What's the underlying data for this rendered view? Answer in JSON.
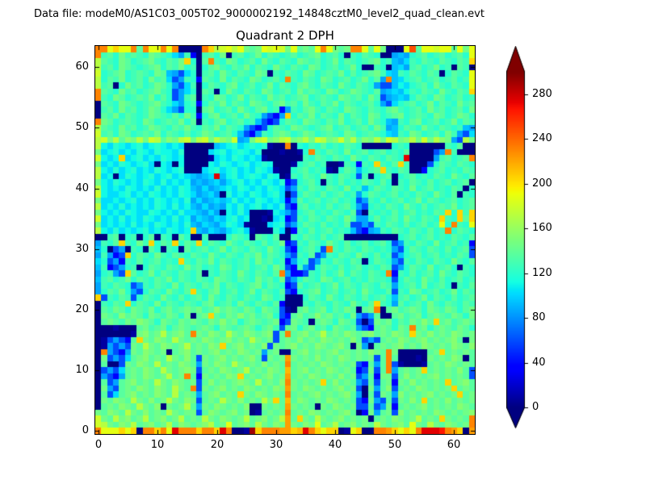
{
  "page": {
    "background": "#ffffff",
    "axes_edge_color": "#000000",
    "text_color": "#000000"
  },
  "header": {
    "data_file_label": "Data file: modeM0/AS1C03_005T02_9000002192_14848cztM0_level2_quad_clean.evt"
  },
  "chart_data": {
    "type": "heatmap",
    "title": "Quadrant 2 DPH",
    "suptitle": "Data file: modeM0/AS1C03_005T02_9000002192_14848cztM0_level2_quad_clean.evt",
    "grid": false,
    "x_range": [
      -0.5,
      63.5
    ],
    "y_range": [
      -0.5,
      63.5
    ],
    "xticks": [
      0,
      10,
      20,
      30,
      40,
      50,
      60
    ],
    "yticks": [
      0,
      10,
      20,
      30,
      40,
      50,
      60
    ],
    "colorbar": {
      "colormap": "jet",
      "vmin": 0,
      "vmax": 300,
      "ticks": [
        0,
        40,
        80,
        120,
        160,
        200,
        240,
        280
      ],
      "extend": "both",
      "position": "right"
    },
    "encoding": "values_rows_top_to_bottom holds 64 strings (row y=63 first, row y=0 last), each 64 chars (x=0..63). Each char c in alphabet maps to counts value = index(c) * 300/35.",
    "alphabet": "0123456789abcdefghijklmnopqrstuvwxyz",
    "value_per_step": 8.5714,
    "values_rows_top_to_bottom": [
      "rrmommrgrmmrmr0000roklmkmhghmlmlhmghgmrmhghrrmgmh000mtgmmlmmgmhm",
      "rfgehfgfehgfecaf40fgeh0fgefhegfefgefghefge0fegfe00abaefgefgefgem",
      "kgfehgefghfegfhoe0grfehgefgehfegfehgfgefhegfefghefbacfegfegfegfo",
      "kfgehgfefghegfhef0eghfegfhegfehfegfehgefgefhe00fe0bcafgefhef0gf0",
      "lefghefgfehgba7ce0fgehfegfehg0fegfehgefgfhegefghfcbfegfegf0egfem",
      "kegfhefgehfgc7afe4gfehegfehgefgerfegfehgefgefhegarbcefgefgefgefm",
      "kfg0ehfgefhgea7cf0egfeghefgefhegfeghfegfehfegfea77bdcefgehfegfem",
      "rgfehfgefghfe7ace0gf0ehfegfehgefgehfgfehgefhgfegabcbdfegfehfegfo",
      "rfehgefgfhege7afg0fehgefhegfehfgefghefgfehgfgehf7abcbegfehgefgef",
      "0gfehgfefghfecaef4egfhegfehgfeghfgehfegfhegfefgea7cefgefhegfehfg",
      "0fgehfgefhgeca7ee0ghefgehfeghef4afeghfegfehgfegfeghfefgehfgefgeh",
      "0gfhegfefhgfegehf4eghefgehfea74aoegfhegfehegfehgefghefgfehgefhge",
      "rhgefgfehgefgfheg0feghefgefb747egfehgfegfhefgehfebafeghefgefhegf",
      "kgfehfgefhgfegfhfegfhegfea747egfehgfefghefgefgehfabegfehfegfefba",
      "lfgehgefgfhegfegefhgefgeb74afeghgefhgefgfehgefgfecbfehgefgehfa7c",
      "klhkgihkhlkgihklhklhkihlabhklhiklhikhlkhilhkgihkhlkhikhlhkiha7kh",
      "kdcedcdecdedcdc00000bcdecdede100r0edfegefegfe00000efe000000feg00",
      "hcdecdcedceddce0000cdecdedce0001001erfegfehefgefgefeg00007arf000",
      "ldcdocdecdcedcd00001cdcedcdc1000000fegfegfehfegfegfew0000afgefgr",
      "hcdcedcdec0dc0d0000dcedcdecded0001efgef001fe4feofegof0007egfegfe",
      "kdcecdecdcedcde000cdecdecdcedc100efgefe10egfbefgofegf004efgefegf",
      "kcd0cedcdecdecdcbabcwbdecdedced01fegfehfegfe7f0efg0efgefegfehfeg",
      "hdcedcdcedcecdcdababcacdecdcedce47efge0fegefegfege0fegfegefgefg0",
      "kdcdcedcdcecdcedbacabcdcedcdcedc7afegfegfehefbegfegfehefgefegf0e",
      "ldccdecdcedcdcedcabca0ecdcedcdec07egfegefgefaegfefgefegfehfeg0fe",
      "hccdcdecdcedcdceacabcbcecdcedcdc4agefgefgefe7afegefgefhegfefgefg",
      "kcdcecdcdcedcecdbacabadcecdecdce74fgefegefgea7efegfehfegefgfhefg",
      "hdcdcedccedcdceccbaca0dcec0001dca7efgefegfeg70fefegefgefegfoeofo",
      "lcdcecdcedcdcecdacbacbdecd0010cd47fegfegfehfaaegefgehfegfeofeogo",
      "hcdcdcecdcedcdcebacbacedc1000cde7aegfegefeg77a7fegfegefgefmerfem",
      "kdcecdcdecdcedcdobacbacdec1000ec04fegefgefeb74abfegfegfegefregfe",
      "00fg0ef0eg0fe0ge00f000egfe0gfeg00fegfegefg000000000efgefgefegfeg",
      "afegofehfoegfoegfoegfehfegfegefh47fegfehfegefgefge7afegfehefgef4",
      "be07a0fe0ge0fe0gefgefhegfegfehfe74efge7rfegfegfefea7egfegfegefg7",
      "afa47oegfehfegfegfehfegfegfhegfea7feg7afegfehfegef7befgefgefegf7",
      "ce7a4fegefgefeofegfhegfefgehfgef4aef7afegfegf0egfea7fegfegfehfeg",
      "bf47aef0egfegfehfgefehgefgefgehf74fa7egfegefgefegf7aegfehefge0fe",
      "aefa7ogefhegfegfeg0fegfehfegfegra447fegefhegfegfer4fegefgehfegfe",
      "bfgefhegfegfhegfegfehgfegfehfgeh7aegfehgefgefegffe7egfehfegefgef",
      "afegfe7afegfehegfegfhegfefghegfe47gefgefhegfegfegfaefgehefge0feg",
      "aegfhea7egfehfegofeghefgefhegfeg74efghefgefgehfeeg7fehgefgefhegf",
      "o7fegf7egfehfegefgehfegfegfehgef000egfehfegfegefgebfgefhegfegefg",
      "0fegfoegfehegfegfeghefgehfegfeg4000fegfegfehfegofeagefgehfegfegf",
      "0gfhgehgfheghfghghfgighgfhgehgf710ghfghegfhg0ghr0ghfghgehgfhgegh",
      "0hgfighgehgfhgeh0ghogfhgighfghe74ghfgighfgeha7ag00ghfgheghgfhgeh",
      "0ghgfhgihgehgfhghgfhgigheghgfgh47hgf0ghgehgf707hghegfhgigoghfghg",
      "0001000ghfgheghgfghgehgfghgeghf7gheghfgehgfga74ghgehgrgheghgfhge",
      "0000001highkghigrhgihgkhgihghi7grghighkghgihghighgihgohgighgihgh",
      "017a74gohgihgkhghgihghighgkhgh7ghgighgihghgig7a7ghgihghighghig0h",
      "01a7a7hgkhgihghkghgihoghighgi7hghighgihghig0ha0ghghighgihghgihgi",
      "0ra74ahgihgh0ghighghighgihghagh00ghighghighghgihgrh00000ghoghghg",
      "0h7a7cghighgkhgig7hghighghig7hghqhghgighgihghgh7grg00010hghgih0g",
      "0g007hgihgkghgihgahgihgkhghgighgrghghgihghgh74gagr710001ghgihghg",
      "07a7cghgihgkhghih7ghgihghkghgihgpghighgihghg47h7graghghoghghgig7",
      "0a74aghgihghkghrg4hghgihoghghighqghgihghgigh7ag4hh7gighghighghg7",
      "0g7aghighgkhgihgh7gighghihgkghgirhghghogighga7g7gh4hgighghgoghig",
      "0ha7ghgihgihgkhgr7hghighgihghgihqhgihghghigh70hagi7ghgihghghoghg",
      "0g7cghighgihgkghgaghighgohgihghgrghghighghiga0g7hgaighghighghogh",
      "0hgihgkhgighkhgih7ghgkhgighgkhogpgihghgihghg74ha7g7hgigoghgighgh",
      "0ghgihgkhgi0hghkgahgihghgi00hghgqhghg0hgihgh77g7ah4ghghighghgihg",
      "hgihgkhgighgkhghh7gihghigh01ghghrghgihghghig04hagh7ighghgihghghi",
      "lhgkhighkghighkghgkhgihghkghighkqgohgkhghighgh0ghgihghkghgohghgr",
      "lkhgihkghighkgihghikghmghigkhgihqhgihmghkghighgkhghigmhgkhgihghr",
      "rmmmomo0rrormwrrrorrowr001yorrrqqopwromoo01mo00rrqomomrwwwvrqo0q"
    ]
  }
}
